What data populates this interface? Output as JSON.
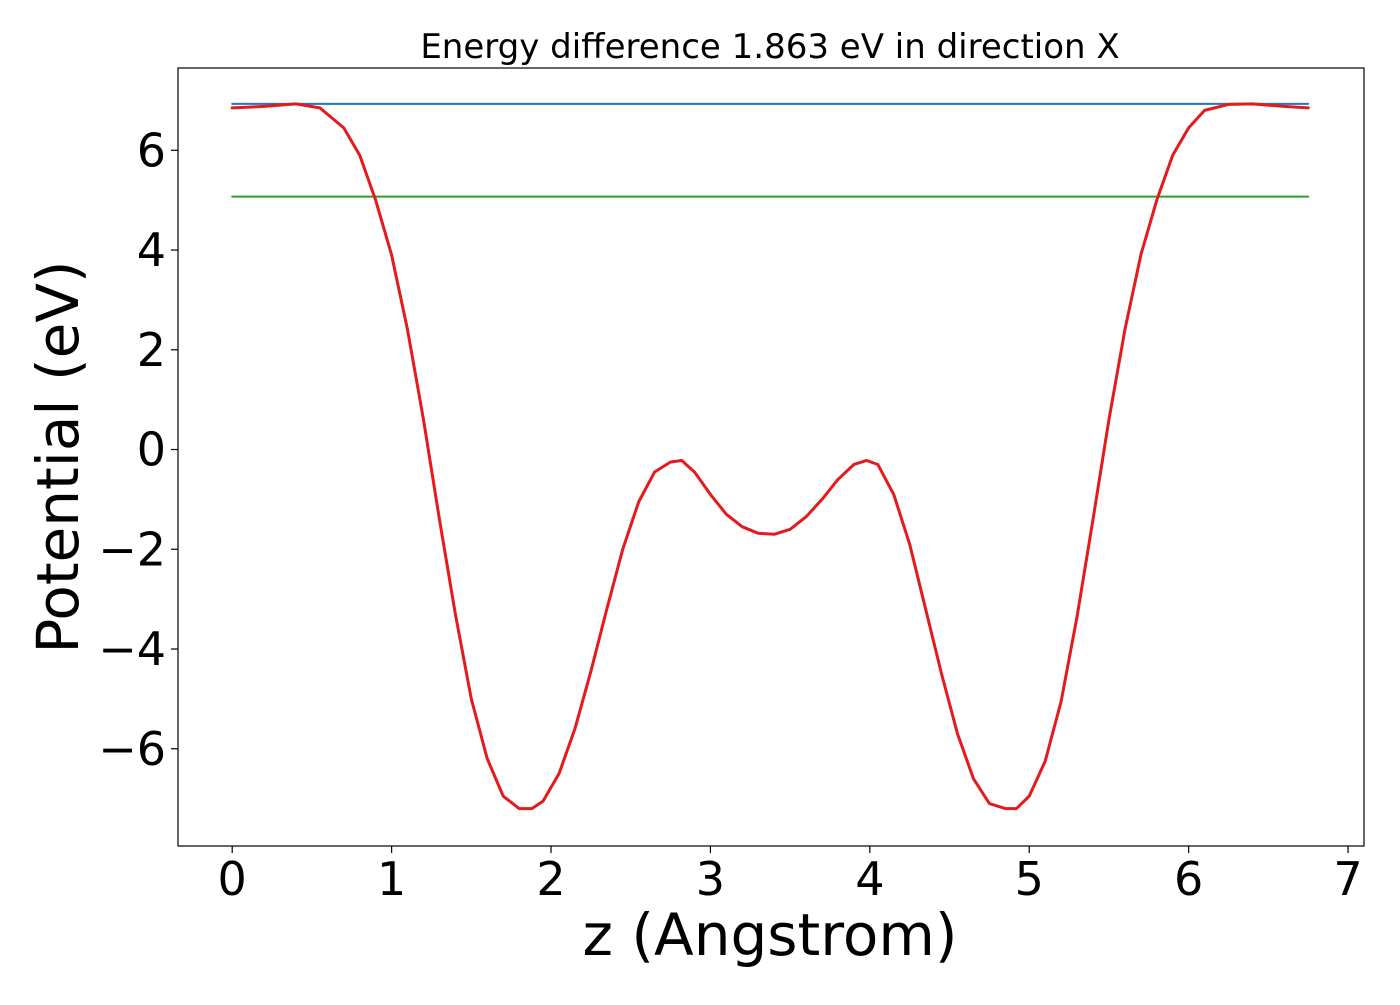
{
  "chart_data": {
    "type": "line",
    "title": "Energy difference 1.863 eV in direction X",
    "xlabel": "z (Angstrom)",
    "ylabel": "Potential (eV)",
    "xlim": [
      -0.34,
      7.1
    ],
    "ylim": [
      -7.95,
      7.65
    ],
    "xticks": [
      0,
      1,
      2,
      3,
      4,
      5,
      6,
      7
    ],
    "xtick_labels": [
      "0",
      "1",
      "2",
      "3",
      "4",
      "5",
      "6",
      "7"
    ],
    "yticks": [
      -6,
      -4,
      -2,
      0,
      2,
      4,
      6
    ],
    "ytick_labels": [
      "−6",
      "−4",
      "−2",
      "0",
      "2",
      "4",
      "6"
    ],
    "grid": false,
    "legend": "none",
    "series": [
      {
        "color": "#e41a1c",
        "x": [
          0,
          0.2,
          0.4,
          0.55,
          0.7,
          0.8,
          0.9,
          1.0,
          1.1,
          1.2,
          1.3,
          1.4,
          1.5,
          1.6,
          1.7,
          1.8,
          1.88,
          1.95,
          2.05,
          2.15,
          2.25,
          2.35,
          2.45,
          2.55,
          2.65,
          2.75,
          2.82,
          2.9,
          3.0,
          3.1,
          3.2,
          3.3,
          3.4,
          3.5,
          3.6,
          3.7,
          3.8,
          3.9,
          3.98,
          4.05,
          4.15,
          4.25,
          4.35,
          4.45,
          4.55,
          4.65,
          4.75,
          4.85,
          4.92,
          5.0,
          5.1,
          5.2,
          5.3,
          5.4,
          5.5,
          5.6,
          5.7,
          5.8,
          5.9,
          6.0,
          6.1,
          6.25,
          6.4,
          6.6,
          6.75
        ],
        "y": [
          6.85,
          6.88,
          6.93,
          6.85,
          6.45,
          5.9,
          5.0,
          3.9,
          2.4,
          0.6,
          -1.4,
          -3.3,
          -5.0,
          -6.2,
          -6.95,
          -7.2,
          -7.2,
          -7.05,
          -6.5,
          -5.6,
          -4.45,
          -3.2,
          -2.0,
          -1.05,
          -0.45,
          -0.25,
          -0.22,
          -0.45,
          -0.9,
          -1.3,
          -1.55,
          -1.68,
          -1.7,
          -1.6,
          -1.35,
          -1.0,
          -0.6,
          -0.3,
          -0.22,
          -0.3,
          -0.9,
          -1.9,
          -3.2,
          -4.5,
          -5.7,
          -6.6,
          -7.1,
          -7.2,
          -7.2,
          -6.95,
          -6.25,
          -5.05,
          -3.35,
          -1.4,
          0.6,
          2.4,
          3.9,
          5.0,
          5.9,
          6.45,
          6.8,
          6.92,
          6.93,
          6.88,
          6.85
        ]
      },
      {
        "color": "#1f77b4",
        "x": [
          0,
          6.75
        ],
        "y": [
          6.93,
          6.93
        ]
      },
      {
        "color": "#2ca02c",
        "x": [
          0,
          6.75
        ],
        "y": [
          5.07,
          5.07
        ]
      }
    ]
  }
}
